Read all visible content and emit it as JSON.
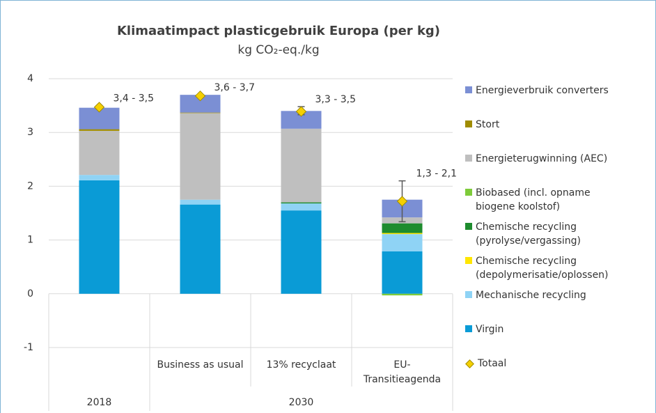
{
  "chart_data": {
    "type": "stacked_bar",
    "title": "Klimaatimpact plasticgebruik Europa (per kg)",
    "subtitle": "kg CO₂-eq./kg",
    "categories": [
      null,
      "Business as usual",
      "13% recyclaat",
      "EU-Transitieagenda"
    ],
    "category_groups": [
      {
        "name": "2018",
        "categories": [
          0
        ]
      },
      {
        "name": "2030",
        "categories": [
          1,
          2,
          3
        ]
      }
    ],
    "ylim": [
      -1,
      4
    ],
    "yticks": [
      -1,
      0,
      1,
      2,
      3,
      4
    ],
    "grid": true,
    "legend": "right",
    "series": [
      {
        "name": "Virgin",
        "color": "#0a9bd6",
        "values": [
          2.11,
          1.66,
          1.55,
          0.79
        ]
      },
      {
        "name": "Mechanische recycling",
        "color": "#8fd3f5",
        "values": [
          0.1,
          0.09,
          0.13,
          0.32
        ]
      },
      {
        "name": "Chemische recycling (depolymerisatie/oplossen)",
        "color": "#ffe600",
        "values": [
          0,
          0,
          0,
          0.02
        ]
      },
      {
        "name": "Chemische recycling (pyrolyse/vergassing)",
        "color": "#1e8c2e",
        "values": [
          0,
          0,
          0.02,
          0.18
        ]
      },
      {
        "name": "Biobased (incl. opname biogene koolstof)",
        "color": "#7ecb3a",
        "values": [
          0,
          0,
          0,
          -0.03
        ]
      },
      {
        "name": "Energieterugwinning (AEC)",
        "color": "#bfbfbf",
        "values": [
          0.82,
          1.61,
          1.37,
          0.11
        ]
      },
      {
        "name": "Stort",
        "color": "#a08c00",
        "values": [
          0.03,
          0.01,
          0,
          0
        ]
      },
      {
        "name": "Energieverbruik converters",
        "color": "#7b8fd4",
        "values": [
          0.4,
          0.33,
          0.33,
          0.33
        ]
      }
    ],
    "total": {
      "name": "Totaal",
      "color": "#f5d000",
      "values": [
        3.47,
        3.68,
        3.39,
        1.72
      ],
      "error_minus": [
        0.03,
        0.02,
        0.06,
        0.38
      ],
      "error_plus": [
        0.03,
        0.02,
        0.09,
        0.38
      ],
      "value_labels": [
        "3,4 - 3,5",
        "3,6 - 3,7",
        "3,3 - 3,5",
        "1,3 - 2,1"
      ]
    }
  }
}
